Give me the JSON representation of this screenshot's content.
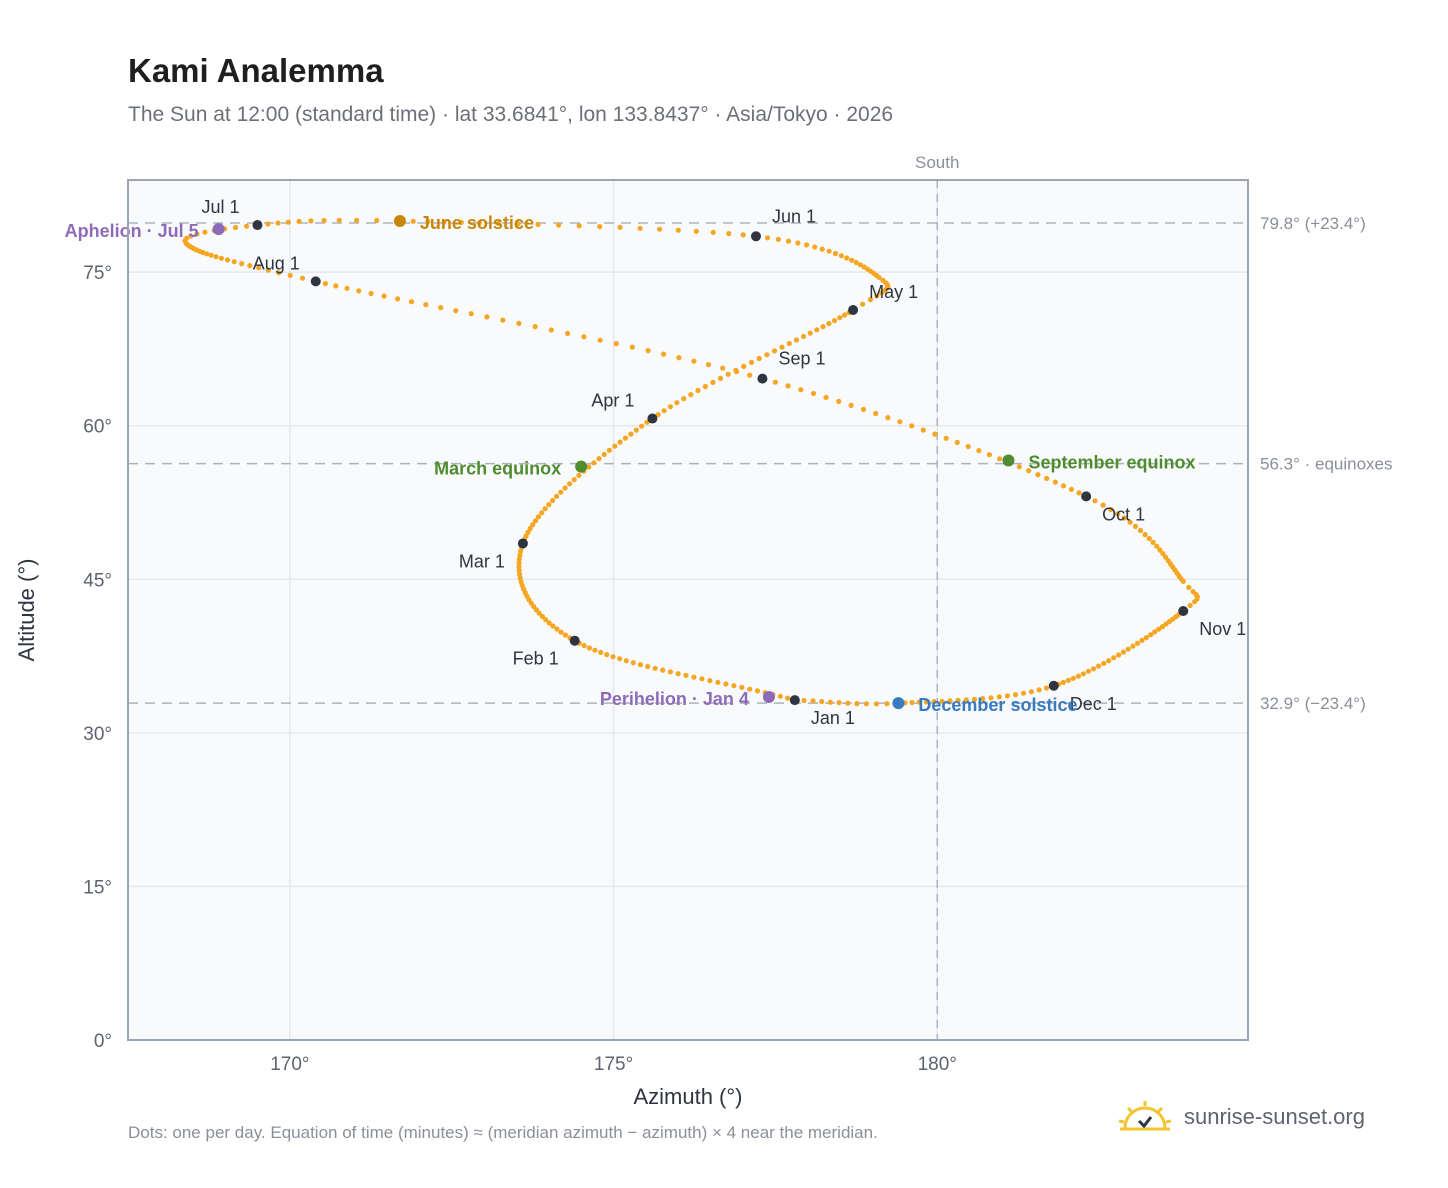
{
  "header": {
    "title": "Kami Analemma",
    "subtitle": "The Sun at 12:00 (standard time) · lat 33.6841°, lon 133.8437° · Asia/Tokyo · 2026"
  },
  "footer": {
    "note": "Dots: one per day. Equation of time (minutes) ≈ (meridian azimuth − azimuth) × 4 near the meridian.",
    "brand": "sunrise-sunset.org",
    "brand_icon": "sun-logo-icon"
  },
  "chart_data": {
    "type": "scatter",
    "title": "Kami Analemma",
    "xlabel": "Azimuth (°)",
    "ylabel": "Altitude (°)",
    "xlim": [
      167.5,
      184.8
    ],
    "ylim": [
      0,
      84
    ],
    "x_ticks": [
      170,
      175,
      180
    ],
    "x_tick_labels": [
      "170°",
      "175°",
      "180°"
    ],
    "y_ticks": [
      0,
      15,
      30,
      45,
      60,
      75
    ],
    "y_tick_labels": [
      "0°",
      "15°",
      "30°",
      "45°",
      "60°",
      "75°"
    ],
    "grid": true,
    "colors": {
      "path": "#f5a623",
      "month_marker": "#2f3540",
      "equinox": "#4f8c2f",
      "june_solstice": "#c8860a",
      "december_solstice": "#3a7bbf",
      "apsis": "#8e6bb8",
      "reference_line": "#aab4bf",
      "plot_bg": "#f8fafc",
      "grid": "#e4e9ef",
      "frame": "#9aa5b4"
    },
    "south_line": {
      "azimuth": 180,
      "label": "South"
    },
    "reference_lines": [
      {
        "altitude": 79.8,
        "label": "79.8° (+23.4°)"
      },
      {
        "altitude": 56.3,
        "label": "56.3° · equinoxes"
      },
      {
        "altitude": 32.9,
        "label": "32.9° (−23.4°)"
      }
    ],
    "path_knots": [
      [
        177.8,
        33.2,
        0
      ],
      [
        174.4,
        39.0,
        31
      ],
      [
        173.6,
        48.5,
        59
      ],
      [
        175.6,
        60.7,
        90
      ],
      [
        178.7,
        71.3,
        120
      ],
      [
        179.1,
        74.5,
        131
      ],
      [
        177.2,
        78.5,
        151
      ],
      [
        171.7,
        80.0,
        171
      ],
      [
        169.5,
        79.6,
        181
      ],
      [
        168.4,
        77.8,
        191
      ],
      [
        170.4,
        74.1,
        212
      ],
      [
        177.3,
        64.6,
        243
      ],
      [
        182.3,
        53.1,
        273
      ],
      [
        183.8,
        44.8,
        296
      ],
      [
        183.8,
        41.9,
        304
      ],
      [
        181.8,
        34.6,
        334
      ],
      [
        179.4,
        32.9,
        354
      ],
      [
        177.8,
        33.2,
        365
      ]
    ],
    "months": [
      {
        "label": "Jan 1",
        "azimuth": 177.8,
        "altitude": 33.2
      },
      {
        "label": "Feb 1",
        "azimuth": 174.4,
        "altitude": 39.0
      },
      {
        "label": "Mar 1",
        "azimuth": 173.6,
        "altitude": 48.5
      },
      {
        "label": "Apr 1",
        "azimuth": 175.6,
        "altitude": 60.7
      },
      {
        "label": "May 1",
        "azimuth": 178.7,
        "altitude": 71.3
      },
      {
        "label": "Jun 1",
        "azimuth": 177.2,
        "altitude": 78.5
      },
      {
        "label": "Jul 1",
        "azimuth": 169.5,
        "altitude": 79.6
      },
      {
        "label": "Aug 1",
        "azimuth": 170.4,
        "altitude": 74.1
      },
      {
        "label": "Sep 1",
        "azimuth": 177.3,
        "altitude": 64.6
      },
      {
        "label": "Oct 1",
        "azimuth": 182.3,
        "altitude": 53.1
      },
      {
        "label": "Nov 1",
        "azimuth": 183.8,
        "altitude": 41.9
      },
      {
        "label": "Dec 1",
        "azimuth": 181.8,
        "altitude": 34.6
      }
    ],
    "events": [
      {
        "label": "March equinox",
        "azimuth": 174.5,
        "altitude": 56.0,
        "kind": "equinox"
      },
      {
        "label": "June solstice",
        "azimuth": 171.7,
        "altitude": 80.0,
        "kind": "june_solstice"
      },
      {
        "label": "September equinox",
        "azimuth": 181.1,
        "altitude": 56.6,
        "kind": "equinox"
      },
      {
        "label": "December solstice",
        "azimuth": 179.4,
        "altitude": 32.9,
        "kind": "december_solstice"
      },
      {
        "label": "Perihelion · Jan 4",
        "azimuth": 177.4,
        "altitude": 33.5,
        "kind": "apsis"
      },
      {
        "label": "Aphelion · Jul 5",
        "azimuth": 168.9,
        "altitude": 79.2,
        "kind": "apsis"
      }
    ]
  }
}
